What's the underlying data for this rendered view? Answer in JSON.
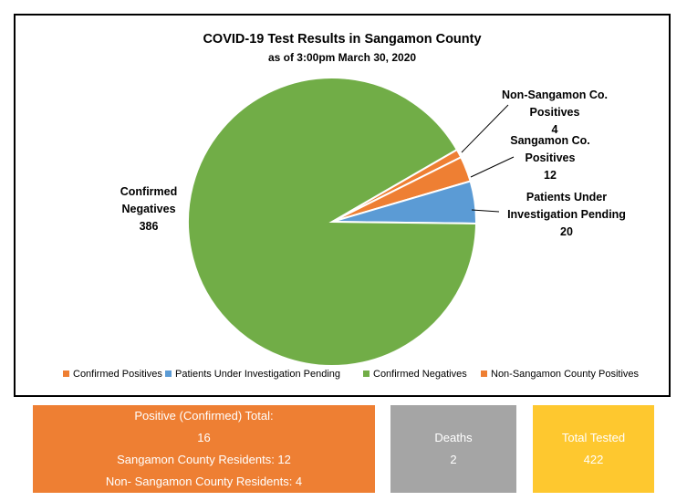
{
  "chart_data": {
    "type": "pie",
    "title": "COVID-19 Test Results in Sangamon County",
    "subtitle": "as of 3:00pm March 30, 2020",
    "slices": [
      {
        "key": "non_sangamon",
        "label_lines": [
          "Non-Sangamon Co.",
          "Positives"
        ],
        "value": 4,
        "color": "#ee7f33"
      },
      {
        "key": "sangamon",
        "label_lines": [
          "Sangamon Co.",
          "Positives"
        ],
        "value": 12,
        "color": "#ee7f33"
      },
      {
        "key": "pui",
        "label_lines": [
          "Patients Under",
          "Investigation Pending"
        ],
        "value": 20,
        "color": "#5b9bd5"
      },
      {
        "key": "negatives",
        "label_lines": [
          "Confirmed",
          "Negatives"
        ],
        "value": 386,
        "color": "#71ad47"
      }
    ],
    "legend": [
      {
        "label": "Confirmed Positives",
        "color": "#ee7f33"
      },
      {
        "label": "Patients Under Investigation Pending",
        "color": "#5b9bd5"
      },
      {
        "label": "Confirmed Negatives",
        "color": "#71ad47"
      },
      {
        "label": "Non-Sangamon County Positives",
        "color": "#ee7f33"
      }
    ],
    "legend_position": "bottom"
  },
  "summary": {
    "positive": {
      "heading": "Positive (Confirmed) Total:",
      "total": "16",
      "sangamon": "Sangamon County Residents: 12",
      "non_sangamon": "Non- Sangamon County Residents: 4",
      "color": "#ee7f33"
    },
    "deaths": {
      "label": "Deaths",
      "value": "2",
      "color": "#a5a5a5"
    },
    "tested": {
      "label": "Total Tested",
      "value": "422",
      "color": "#fec82f"
    }
  }
}
